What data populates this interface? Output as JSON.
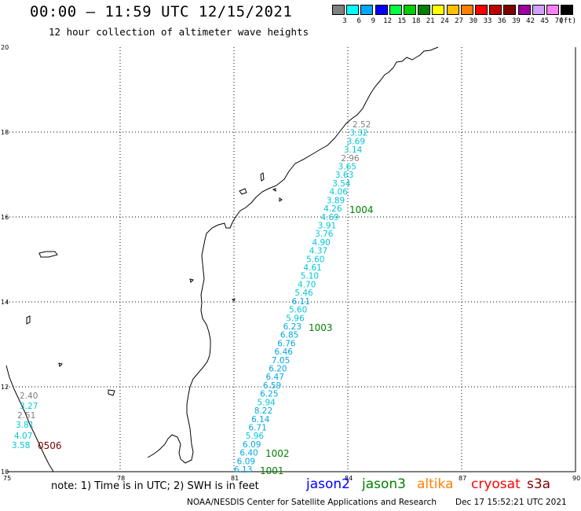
{
  "header": {
    "title": "00:00 – 11:59 UTC 12/15/2021",
    "subtitle": "12 hour collection of altimeter wave heights"
  },
  "legend": {
    "unit_label": "(ft)",
    "colors": [
      "#808080",
      "#00ffff",
      "#00a8ff",
      "#0000ff",
      "#00ff40",
      "#00d000",
      "#008000",
      "#ffff00",
      "#ffc000",
      "#ff8000",
      "#ff0000",
      "#c00000",
      "#800000",
      "#a000a0",
      "#d0a0ff",
      "#ff80ff",
      "#000000"
    ],
    "labels": [
      "3",
      "6",
      "9",
      "12",
      "15",
      "18",
      "21",
      "24",
      "27",
      "30",
      "33",
      "36",
      "39",
      "42",
      "45",
      "70"
    ]
  },
  "axes": {
    "lon_labels": [
      "75",
      "78",
      "81",
      "84",
      "87",
      "90"
    ],
    "lat_labels": [
      "10",
      "12",
      "14",
      "16",
      "18",
      "20"
    ]
  },
  "tracks": {
    "jason3_labels": [
      "1004",
      "1003",
      "1002",
      "1001"
    ],
    "cryosat_label": "0506",
    "main_track_values": [
      {
        "v": "2.52",
        "c": "#808080"
      },
      {
        "v": "3.32",
        "c": "#00c8d8"
      },
      {
        "v": "3.69",
        "c": "#00c8d8"
      },
      {
        "v": "3.14",
        "c": "#00c8d8"
      },
      {
        "v": "2.96",
        "c": "#808080"
      },
      {
        "v": "3.65",
        "c": "#00c8d8"
      },
      {
        "v": "3.63",
        "c": "#00c8d8"
      },
      {
        "v": "3.54",
        "c": "#00c8d8"
      },
      {
        "v": "4.06",
        "c": "#00c8d8"
      },
      {
        "v": "3.89",
        "c": "#00c8d8"
      },
      {
        "v": "4.26",
        "c": "#00c8d8"
      },
      {
        "v": "4.69",
        "c": "#00c8d8"
      },
      {
        "v": "3.91",
        "c": "#00c8d8"
      },
      {
        "v": "3.76",
        "c": "#00c8d8"
      },
      {
        "v": "4.90",
        "c": "#00c8d8"
      },
      {
        "v": "4.37",
        "c": "#00c8d8"
      },
      {
        "v": "5.60",
        "c": "#00c8d8"
      },
      {
        "v": "4.61",
        "c": "#00c8d8"
      },
      {
        "v": "5.10",
        "c": "#00c8d8"
      },
      {
        "v": "4.70",
        "c": "#00c8d8"
      },
      {
        "v": "5.46",
        "c": "#00c8d8"
      },
      {
        "v": "6.11",
        "c": "#00a8e0"
      },
      {
        "v": "5.60",
        "c": "#00c8d8"
      },
      {
        "v": "5.96",
        "c": "#00c8d8"
      },
      {
        "v": "6.23",
        "c": "#00a8e0"
      },
      {
        "v": "6.85",
        "c": "#00a8e0"
      },
      {
        "v": "6.76",
        "c": "#00a8e0"
      },
      {
        "v": "6.46",
        "c": "#00a8e0"
      },
      {
        "v": "7.05",
        "c": "#00a8e0"
      },
      {
        "v": "6.20",
        "c": "#00a8e0"
      },
      {
        "v": "6.47",
        "c": "#00a8e0"
      },
      {
        "v": "6.59",
        "c": "#00a8e0"
      },
      {
        "v": "6.25",
        "c": "#00a8e0"
      },
      {
        "v": "5.94",
        "c": "#00c8d8"
      },
      {
        "v": "8.22",
        "c": "#00a8e0"
      },
      {
        "v": "6.14",
        "c": "#00a8e0"
      },
      {
        "v": "6.71",
        "c": "#00a8e0"
      },
      {
        "v": "5.96",
        "c": "#00c8d8"
      },
      {
        "v": "6.09",
        "c": "#00a8e0"
      },
      {
        "v": "6.40",
        "c": "#00a8e0"
      },
      {
        "v": "6.09",
        "c": "#00a8e0"
      },
      {
        "v": "6.13",
        "c": "#00a8e0"
      }
    ],
    "left_track_values": [
      {
        "v": "2.40",
        "c": "#808080"
      },
      {
        "v": "3.27",
        "c": "#00c8d8"
      },
      {
        "v": "2.51",
        "c": "#808080"
      },
      {
        "v": "3.81",
        "c": "#00c8d8"
      },
      {
        "v": "4.07",
        "c": "#00c8d8"
      },
      {
        "v": "3.58",
        "c": "#00c8d8"
      }
    ]
  },
  "footer": {
    "note": "note: 1) Time is in UTC; 2) SWH is in feet",
    "sat_jason2": "jason2",
    "sat_jason3": "jason3",
    "sat_altika": "altika",
    "sat_cryosat": "cryosat",
    "sat_s3a": "s3a",
    "sat_colors": {
      "jason2": "#0000ff",
      "jason3": "#008000",
      "altika": "#ff8000",
      "cryosat": "#ff0000",
      "s3a": "#800000"
    },
    "credit": "NOAA/NESDIS Center for Satellite Applications and Research",
    "timestamp": "Dec 17 15:52:21 UTC 2021"
  }
}
